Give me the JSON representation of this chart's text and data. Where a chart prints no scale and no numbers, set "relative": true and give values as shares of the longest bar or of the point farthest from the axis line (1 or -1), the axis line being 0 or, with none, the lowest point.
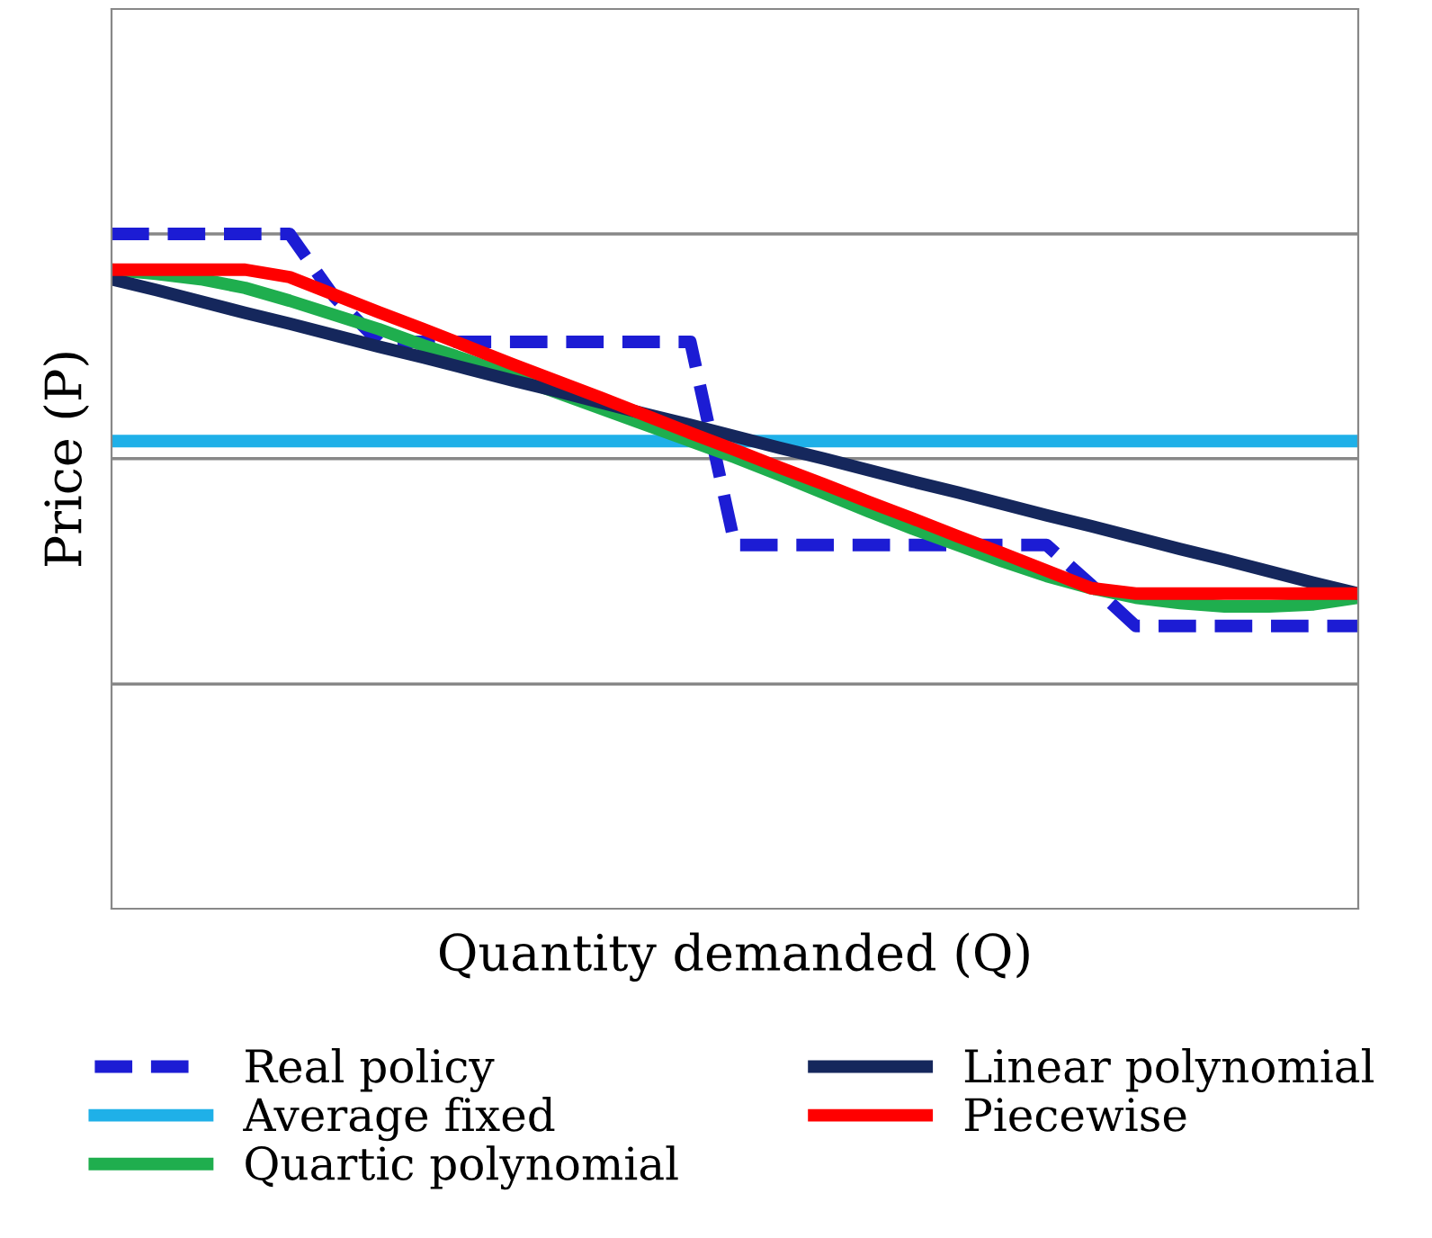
{
  "chart_data": {
    "type": "line",
    "relative": true,
    "xlabel": "Quantity demanded (Q)",
    "ylabel": "Price (P)",
    "ref_lines": [
      {
        "axis": "y",
        "value": 0.333,
        "color": "#888888"
      },
      {
        "axis": "y",
        "value": 0.667,
        "color": "#888888"
      },
      {
        "axis": "y",
        "value": 1.0,
        "color": "#888888"
      }
    ],
    "legend": "bottom",
    "marker": "none",
    "categories": [
      null,
      null,
      null,
      null,
      null,
      null,
      null,
      null,
      null,
      null,
      null,
      null,
      null,
      null,
      null,
      null,
      null,
      null,
      null,
      null,
      null,
      null,
      null,
      null,
      null,
      null,
      null,
      null,
      null
    ],
    "series": [
      {
        "name": "Real policy",
        "color": "#1c1cd4",
        "line_style": "dashed",
        "values": [
          1.0,
          1.0,
          1.0,
          1.0,
          1.0,
          0.907,
          0.84,
          0.84,
          0.84,
          0.84,
          0.84,
          0.84,
          0.84,
          0.84,
          0.539,
          0.539,
          0.539,
          0.539,
          0.539,
          0.539,
          0.539,
          0.539,
          0.48,
          0.419,
          0.419,
          0.419,
          0.419,
          0.419,
          0.419
        ]
      },
      {
        "name": "Average fixed",
        "color": "#1fb0e8",
        "line_style": "solid",
        "values": [
          0.693,
          0.693,
          0.693,
          0.693,
          0.693,
          0.693,
          0.693,
          0.693,
          0.693,
          0.693,
          0.693,
          0.693,
          0.693,
          0.693,
          0.693,
          0.693,
          0.693,
          0.693,
          0.693,
          0.693,
          0.693,
          0.693,
          0.693,
          0.693,
          0.693,
          0.693,
          0.693,
          0.693,
          0.693
        ]
      },
      {
        "name": "Quartic polynomial",
        "color": "#1fae4e",
        "line_style": "solid",
        "values": [
          0.947,
          0.941,
          0.933,
          0.92,
          0.901,
          0.88,
          0.859,
          0.835,
          0.813,
          0.789,
          0.765,
          0.741,
          0.717,
          0.693,
          0.669,
          0.643,
          0.616,
          0.589,
          0.563,
          0.539,
          0.515,
          0.493,
          0.475,
          0.461,
          0.453,
          0.448,
          0.448,
          0.451,
          0.461
        ]
      },
      {
        "name": "Linear polynomial",
        "color": "#15275c",
        "line_style": "solid",
        "values": [
          0.933,
          0.917,
          0.9,
          0.883,
          0.867,
          0.85,
          0.833,
          0.817,
          0.8,
          0.783,
          0.767,
          0.75,
          0.733,
          0.717,
          0.7,
          0.683,
          0.667,
          0.65,
          0.633,
          0.617,
          0.6,
          0.583,
          0.567,
          0.55,
          0.533,
          0.517,
          0.5,
          0.483,
          0.467
        ]
      },
      {
        "name": "Piecewise",
        "color": "#ff0000",
        "line_style": "solid",
        "values": [
          0.947,
          0.947,
          0.947,
          0.947,
          0.936,
          0.91,
          0.884,
          0.859,
          0.833,
          0.807,
          0.782,
          0.757,
          0.731,
          0.705,
          0.68,
          0.654,
          0.629,
          0.603,
          0.578,
          0.552,
          0.527,
          0.501,
          0.475,
          0.467,
          0.467,
          0.467,
          0.467,
          0.467,
          0.467
        ]
      }
    ]
  }
}
